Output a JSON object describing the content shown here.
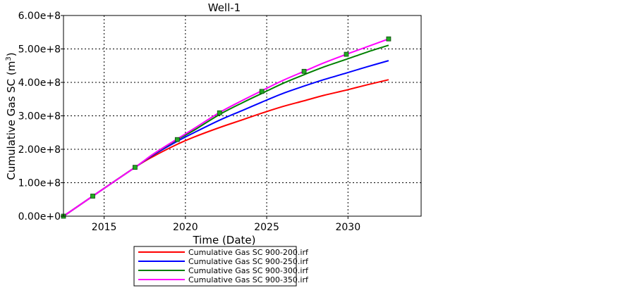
{
  "chart_data": {
    "type": "line",
    "title": "Well-1",
    "xlabel": "Time (Date)",
    "ylabel_main": "Cumulative Gas SC (m",
    "ylabel_sup": "3",
    "ylabel_end": ")",
    "xlim": [
      2012.5,
      2034.5
    ],
    "ylim": [
      0,
      600000000
    ],
    "xticks": [
      2015,
      2020,
      2025,
      2030
    ],
    "xtick_labels": [
      "2015",
      "2020",
      "2025",
      "2030"
    ],
    "yticks": [
      0,
      100000000,
      200000000,
      300000000,
      400000000,
      500000000,
      600000000
    ],
    "ytick_labels": [
      "0.00e+0",
      "1.00e+8",
      "2.00e+8",
      "3.00e+8",
      "4.00e+8",
      "5.00e+8",
      "6.00e+8"
    ],
    "grid": true,
    "legend_position": "bottom",
    "series": [
      {
        "name": "Cumulative Gas SC 900-200.irf",
        "color": "#ff0000",
        "x": [
          2012.5,
          2014.3,
          2016.9,
          2018.0,
          2019.5,
          2020.5,
          2022.1,
          2023.5,
          2024.7,
          2026.0,
          2027.3,
          2028.5,
          2029.9,
          2031.2,
          2032.5
        ],
        "y": [
          0,
          60000000,
          146000000,
          178000000,
          215000000,
          236000000,
          265000000,
          288000000,
          308000000,
          328000000,
          345000000,
          361000000,
          377000000,
          393000000,
          408000000
        ]
      },
      {
        "name": "Cumulative Gas SC 900-250.irf",
        "color": "#0000ff",
        "x": [
          2012.5,
          2014.3,
          2016.9,
          2018.0,
          2019.5,
          2020.5,
          2022.1,
          2023.5,
          2024.7,
          2026.0,
          2027.3,
          2028.5,
          2029.9,
          2031.2,
          2032.5
        ],
        "y": [
          0,
          60000000,
          146000000,
          182000000,
          224000000,
          249000000,
          287000000,
          316000000,
          341000000,
          367000000,
          389000000,
          408000000,
          428000000,
          447000000,
          465000000
        ]
      },
      {
        "name": "Cumulative Gas SC 900-300.irf",
        "color": "#008000",
        "x": [
          2012.5,
          2014.3,
          2016.9,
          2018.0,
          2019.5,
          2020.5,
          2022.1,
          2023.5,
          2024.7,
          2026.0,
          2027.3,
          2028.5,
          2029.9,
          2031.2,
          2032.5
        ],
        "y": [
          0,
          60000000,
          146000000,
          184000000,
          229000000,
          256000000,
          304000000,
          339000000,
          367000000,
          397000000,
          423000000,
          446000000,
          469000000,
          491000000,
          511000000
        ]
      },
      {
        "name": "Cumulative Gas SC 900-350.irf",
        "color": "#ff00ff",
        "x": [
          2012.5,
          2014.3,
          2016.9,
          2018.0,
          2019.5,
          2020.5,
          2022.1,
          2023.5,
          2024.7,
          2026.0,
          2027.3,
          2028.5,
          2029.9,
          2031.2,
          2032.5
        ],
        "y": [
          0,
          60000000,
          146000000,
          185000000,
          231000000,
          261000000,
          310000000,
          346000000,
          375000000,
          406000000,
          433000000,
          458000000,
          484000000,
          507000000,
          530000000
        ]
      }
    ],
    "markers": {
      "color": "#22aa22",
      "x": [
        2012.5,
        2014.3,
        2016.9,
        2019.5,
        2022.1,
        2024.7,
        2027.3,
        2029.9,
        2032.5
      ],
      "y": [
        0,
        60000000,
        146000000,
        229000000,
        309000000,
        373000000,
        433000000,
        484000000,
        530000000
      ]
    }
  }
}
